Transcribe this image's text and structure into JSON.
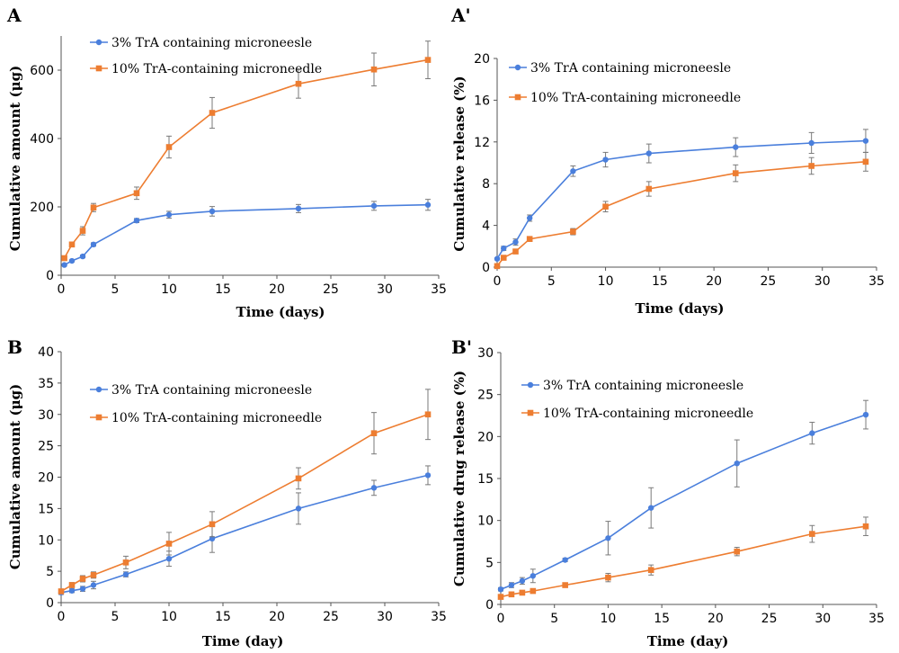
{
  "colors": {
    "s1": "#4a7fdc",
    "s2": "#ed7d31",
    "err": "#7a7a7a"
  },
  "chart_data": [
    {
      "panel": "A",
      "type": "line",
      "xlabel": "Time (days)",
      "ylabel": "Cumulative amount (μg)",
      "xlim": [
        0,
        35
      ],
      "ylim": [
        0,
        700
      ],
      "xticks": [
        0,
        5,
        10,
        15,
        20,
        25,
        30,
        35
      ],
      "yticks": [
        0,
        200,
        400,
        600
      ],
      "legend_position": "top-left",
      "series": [
        {
          "name": "3% TrA containing microneesle",
          "marker": "circle",
          "color": "#4a7fdc",
          "x": [
            0.3,
            1,
            2,
            3,
            7,
            10,
            14,
            22,
            29,
            34
          ],
          "y": [
            30,
            42,
            55,
            90,
            160,
            177,
            187,
            195,
            203,
            206
          ],
          "err": [
            3,
            3,
            4,
            5,
            6,
            10,
            14,
            12,
            13,
            16
          ]
        },
        {
          "name": "10% TrA-containing microneedle",
          "marker": "square",
          "color": "#ed7d31",
          "x": [
            0.3,
            1,
            2,
            3,
            7,
            10,
            14,
            22,
            29,
            34
          ],
          "y": [
            50,
            90,
            130,
            198,
            240,
            375,
            475,
            560,
            602,
            630
          ],
          "err": [
            4,
            6,
            12,
            12,
            18,
            32,
            45,
            42,
            48,
            55
          ]
        }
      ]
    },
    {
      "panel": "A'",
      "type": "line",
      "xlabel": "Time (days)",
      "ylabel": "Cumulative release (%)",
      "xlim": [
        0,
        35
      ],
      "ylim": [
        0,
        20
      ],
      "xticks": [
        0,
        5,
        10,
        15,
        20,
        25,
        30,
        35
      ],
      "yticks": [
        0,
        4,
        8,
        12,
        16,
        20
      ],
      "legend_position": "top-left",
      "series": [
        {
          "name": "3% TrA containing microneesle",
          "marker": "circle",
          "color": "#4a7fdc",
          "x": [
            0,
            0.6,
            1.7,
            3,
            7,
            10,
            14,
            22,
            29,
            34
          ],
          "y": [
            0.8,
            1.8,
            2.4,
            4.7,
            9.2,
            10.3,
            10.9,
            11.5,
            11.9,
            12.1
          ],
          "err": [
            0.1,
            0.2,
            0.3,
            0.3,
            0.5,
            0.7,
            0.9,
            0.9,
            1.0,
            1.1
          ]
        },
        {
          "name": "10% TrA-containing microneedle",
          "marker": "square",
          "color": "#ed7d31",
          "x": [
            0,
            0.6,
            1.7,
            3,
            7,
            10,
            14,
            22,
            29,
            34
          ],
          "y": [
            0.1,
            0.9,
            1.5,
            2.7,
            3.4,
            5.8,
            7.5,
            9.0,
            9.7,
            10.1
          ],
          "err": [
            0.05,
            0.1,
            0.15,
            0.2,
            0.3,
            0.5,
            0.7,
            0.8,
            0.8,
            0.9
          ]
        }
      ]
    },
    {
      "panel": "B",
      "type": "line",
      "xlabel": "Time (day)",
      "ylabel": "Cumulative amount (μg)",
      "xlim": [
        0,
        35
      ],
      "ylim": [
        0,
        40
      ],
      "xticks": [
        0,
        5,
        10,
        15,
        20,
        25,
        30,
        35
      ],
      "yticks": [
        0,
        5,
        10,
        15,
        20,
        25,
        30,
        35,
        40
      ],
      "legend_position": "top-left",
      "series": [
        {
          "name": "3% TrA containing microneesle",
          "marker": "circle",
          "color": "#4a7fdc",
          "x": [
            0,
            1,
            2,
            3,
            6,
            10,
            14,
            22,
            29,
            34
          ],
          "y": [
            1.6,
            1.9,
            2.2,
            2.8,
            4.5,
            7.0,
            10.2,
            15.0,
            18.3,
            20.3
          ],
          "err": [
            0.3,
            0.3,
            0.4,
            0.6,
            0.4,
            1.2,
            2.2,
            2.5,
            1.2,
            1.5
          ]
        },
        {
          "name": "10% TrA-containing microneedle",
          "marker": "square",
          "color": "#ed7d31",
          "x": [
            0,
            1,
            2,
            3,
            6,
            10,
            14,
            22,
            29,
            34
          ],
          "y": [
            1.8,
            2.8,
            3.8,
            4.4,
            6.4,
            9.4,
            12.5,
            19.8,
            27.0,
            30.0
          ],
          "err": [
            0.3,
            0.4,
            0.5,
            0.5,
            1.0,
            1.8,
            2.0,
            1.7,
            3.3,
            4.0
          ]
        }
      ]
    },
    {
      "panel": "B'",
      "type": "line",
      "xlabel": "Time (day)",
      "ylabel": "Cumulative drug release (%)",
      "xlim": [
        0,
        35
      ],
      "ylim": [
        0,
        30
      ],
      "xticks": [
        0,
        5,
        10,
        15,
        20,
        25,
        30,
        35
      ],
      "yticks": [
        0,
        5,
        10,
        15,
        20,
        25,
        30
      ],
      "legend_position": "top-left",
      "series": [
        {
          "name": "3% TrA containing microneesle",
          "marker": "circle",
          "color": "#4a7fdc",
          "x": [
            0,
            1,
            2,
            3,
            6,
            10,
            14,
            22,
            29,
            34
          ],
          "y": [
            1.8,
            2.3,
            2.8,
            3.4,
            5.3,
            7.9,
            11.5,
            16.8,
            20.4,
            22.6
          ],
          "err": [
            0.2,
            0.3,
            0.4,
            0.8,
            0.2,
            2.0,
            2.4,
            2.8,
            1.3,
            1.7
          ]
        },
        {
          "name": "10% TrA-containing microneedle",
          "marker": "square",
          "color": "#ed7d31",
          "x": [
            0,
            1,
            2,
            3,
            6,
            10,
            14,
            22,
            29,
            34
          ],
          "y": [
            0.9,
            1.2,
            1.4,
            1.6,
            2.3,
            3.2,
            4.1,
            6.3,
            8.4,
            9.3
          ],
          "err": [
            0.1,
            0.2,
            0.2,
            0.2,
            0.2,
            0.5,
            0.6,
            0.5,
            1.0,
            1.1
          ]
        }
      ]
    }
  ]
}
